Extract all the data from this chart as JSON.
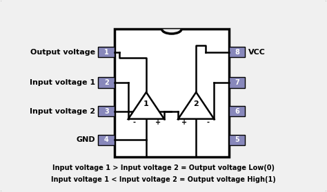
{
  "bg_color": "#f0f0f0",
  "border_color": "#555555",
  "ic_color": "#ffffff",
  "ic_border": "#000000",
  "pin_box_color": "#8888bb",
  "pin_text_color": "#ffffff",
  "label_color": "#000000",
  "left_labels": [
    "Output voltage",
    "Input voltage 1",
    "Input voltage 2",
    "GND"
  ],
  "left_pins": [
    "1",
    "2",
    "3",
    "4"
  ],
  "right_pin_nums": [
    "8",
    "7",
    "6",
    "5"
  ],
  "right_pin_label": "VCC",
  "bottom_text1": "Input voltage 1 > Input voltage 2 = Output voltage Low(0)",
  "bottom_text2": "Input voltage 1 < Input voltage 2 = Output voltage High(1)"
}
